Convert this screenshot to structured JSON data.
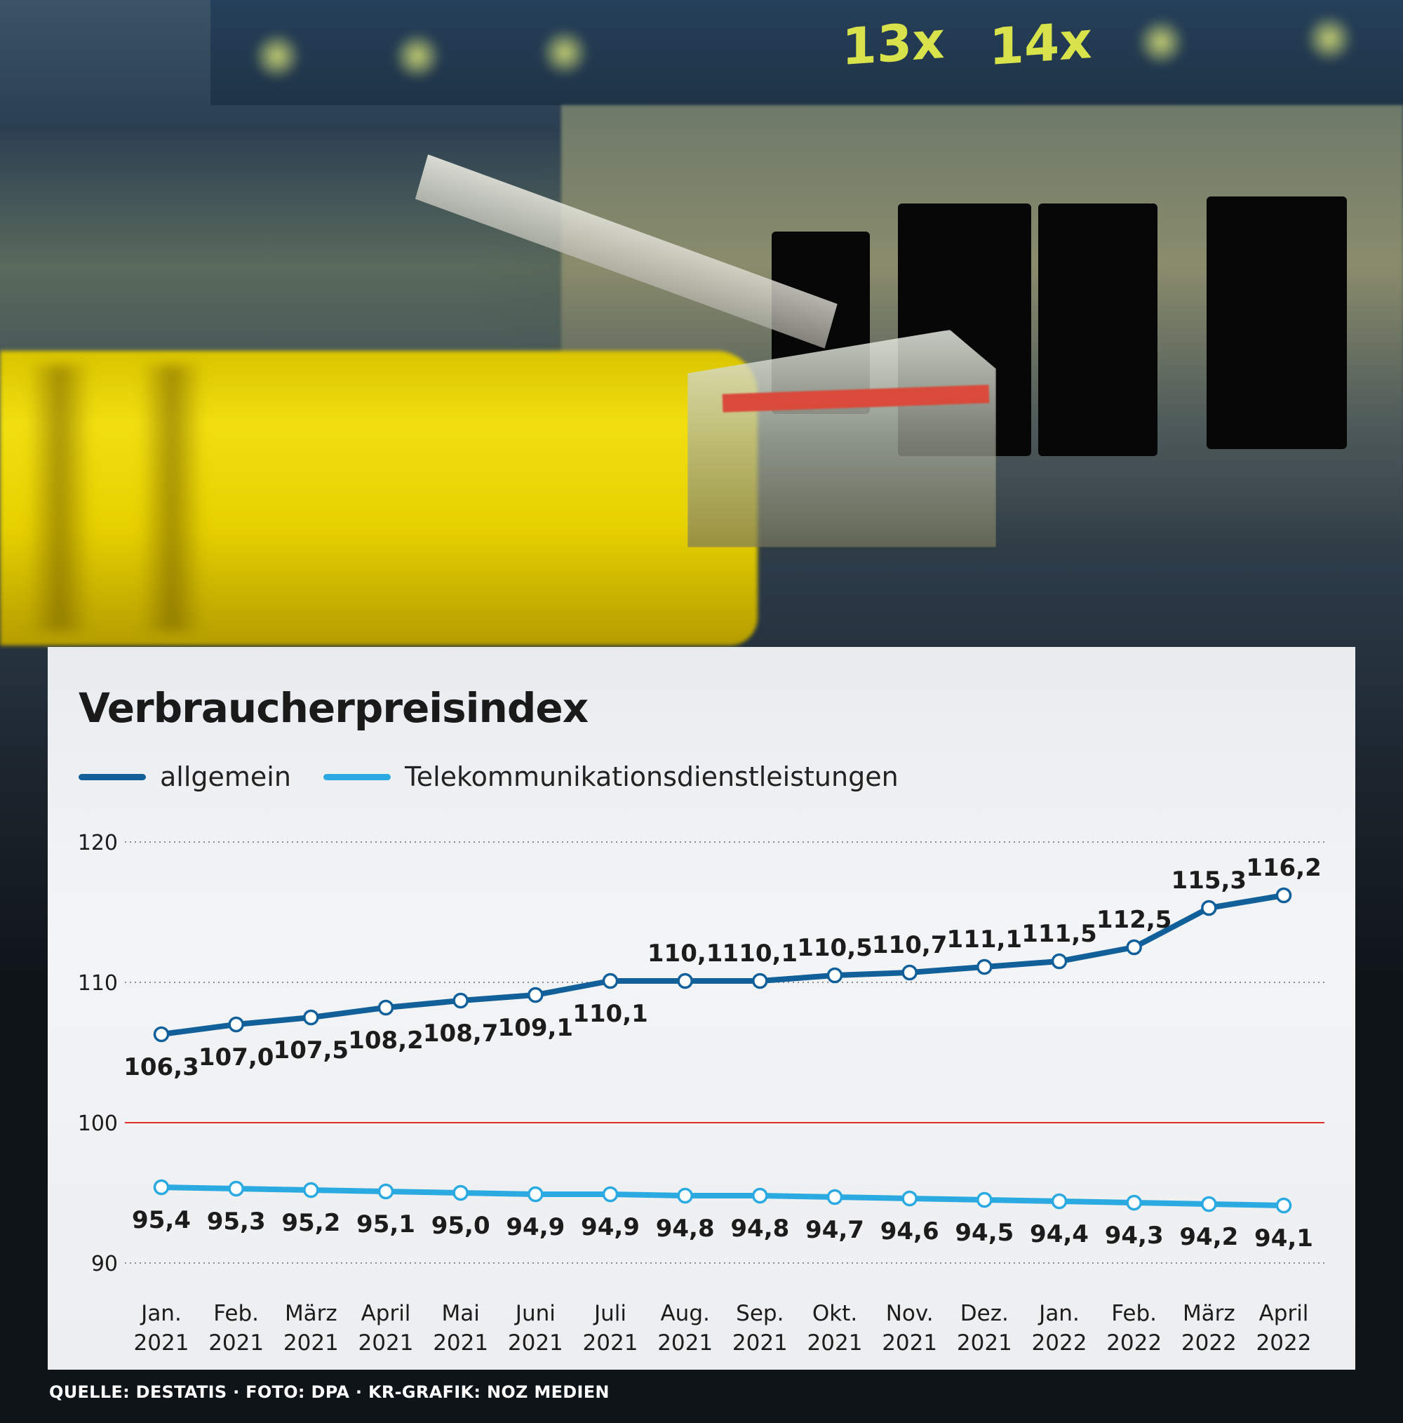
{
  "photo": {
    "port_labels": [
      "13x",
      "14x"
    ]
  },
  "chart_data": {
    "type": "line",
    "title": "Verbraucherpreisindex",
    "categories": [
      [
        "Jan.",
        "2021"
      ],
      [
        "Feb.",
        "2021"
      ],
      [
        "März",
        "2021"
      ],
      [
        "April",
        "2021"
      ],
      [
        "Mai",
        "2021"
      ],
      [
        "Juni",
        "2021"
      ],
      [
        "Juli",
        "2021"
      ],
      [
        "Aug.",
        "2021"
      ],
      [
        "Sep.",
        "2021"
      ],
      [
        "Okt.",
        "2021"
      ],
      [
        "Nov.",
        "2021"
      ],
      [
        "Dez.",
        "2021"
      ],
      [
        "Jan.",
        "2022"
      ],
      [
        "Feb.",
        "2022"
      ],
      [
        "März",
        "2022"
      ],
      [
        "April",
        "2022"
      ]
    ],
    "series": [
      {
        "name": "allgemein",
        "color": "#11609a",
        "values": [
          106.3,
          107.0,
          107.5,
          108.2,
          108.7,
          109.1,
          110.1,
          110.1,
          110.1,
          110.5,
          110.7,
          111.1,
          111.5,
          112.5,
          115.3,
          116.2
        ],
        "labels": [
          "106,3",
          "107,0",
          "107,5",
          "108,2",
          "108,7",
          "109,1",
          "110,1",
          "110,1",
          "110,1",
          "110,5",
          "110,7",
          "111,1",
          "111,5",
          "112,5",
          "115,3",
          "116,2"
        ],
        "label_position": [
          "below",
          "below",
          "below",
          "below",
          "below",
          "below",
          "below",
          "above",
          "above",
          "above",
          "above",
          "above",
          "above",
          "above",
          "above",
          "above"
        ]
      },
      {
        "name": "Telekommunikationsdienstleistungen",
        "color": "#2aaae1",
        "values": [
          95.4,
          95.3,
          95.2,
          95.1,
          95.0,
          94.9,
          94.9,
          94.8,
          94.8,
          94.7,
          94.6,
          94.5,
          94.4,
          94.3,
          94.2,
          94.1
        ],
        "labels": [
          "95,4",
          "95,3",
          "95,2",
          "95,1",
          "95,0",
          "94,9",
          "94,9",
          "94,8",
          "94,8",
          "94,7",
          "94,6",
          "94,5",
          "94,4",
          "94,3",
          "94,2",
          "94,1"
        ],
        "label_position": [
          "below",
          "below",
          "below",
          "below",
          "below",
          "below",
          "below",
          "below",
          "below",
          "below",
          "below",
          "below",
          "below",
          "below",
          "below",
          "below"
        ]
      }
    ],
    "yticks": [
      90,
      100,
      110,
      120
    ],
    "ytick_labels": [
      "90",
      "100",
      "110",
      "120"
    ],
    "ylim": [
      90,
      120
    ],
    "reference_line": {
      "value": 100,
      "color": "#e0302c"
    },
    "grid": "dotted horizontal",
    "legend": "top-left"
  },
  "source": "QUELLE: DESTATIS · FOTO: DPA · KR-GRAFIK: NOZ MEDIEN"
}
